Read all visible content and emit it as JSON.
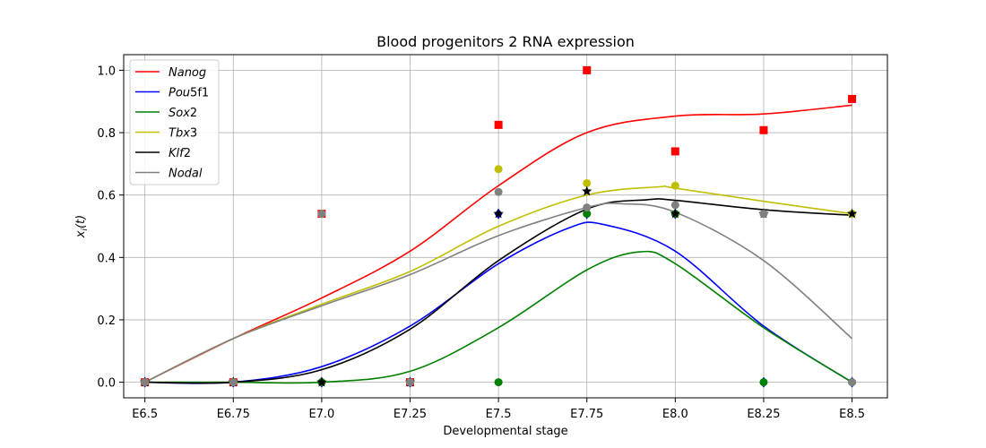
{
  "chart_data": {
    "type": "line",
    "title": "Blood progenitors 2 RNA expression",
    "xlabel": "Developmental stage",
    "ylabel": "x_i(t)",
    "categories": [
      "E6.5",
      "E6.75",
      "E7.0",
      "E7.25",
      "E7.5",
      "E7.75",
      "E8.0",
      "E8.25",
      "E8.5"
    ],
    "x": [
      6.5,
      6.75,
      7.0,
      7.25,
      7.5,
      7.75,
      8.0,
      8.25,
      8.5
    ],
    "xlim": [
      6.44,
      8.6
    ],
    "ylim": [
      -0.05,
      1.05
    ],
    "yticks": [
      "0.0",
      "0.2",
      "0.4",
      "0.6",
      "0.8",
      "1.0"
    ],
    "ytick_values": [
      0.0,
      0.2,
      0.4,
      0.6,
      0.8,
      1.0
    ],
    "grid": true,
    "legend_position": "top-left",
    "series": [
      {
        "name": "Nanog",
        "name_base": "Nanog",
        "name_sub": "",
        "color": "#ff0000",
        "marker": "square",
        "curve": [
          [
            6.5,
            0.0
          ],
          [
            6.75,
            0.14
          ],
          [
            7.0,
            0.27
          ],
          [
            7.25,
            0.42
          ],
          [
            7.5,
            0.63
          ],
          [
            7.75,
            0.8
          ],
          [
            8.0,
            0.853
          ],
          [
            8.25,
            0.86
          ],
          [
            8.5,
            0.888
          ]
        ],
        "points": [
          [
            6.5,
            0.0
          ],
          [
            6.75,
            0.0
          ],
          [
            7.0,
            0.54
          ],
          [
            7.25,
            0.0
          ],
          [
            7.5,
            0.825
          ],
          [
            7.75,
            1.0
          ],
          [
            8.0,
            0.74
          ],
          [
            8.25,
            0.808
          ],
          [
            8.5,
            0.908
          ]
        ]
      },
      {
        "name": "Pou5f1",
        "name_base": "Pou",
        "name_sub": "5f1",
        "color": "#0000ff",
        "marker": "diamond",
        "curve": [
          [
            6.5,
            0.0
          ],
          [
            6.75,
            0.0
          ],
          [
            7.0,
            0.05
          ],
          [
            7.25,
            0.18
          ],
          [
            7.5,
            0.38
          ],
          [
            7.7,
            0.495
          ],
          [
            7.8,
            0.505
          ],
          [
            8.0,
            0.42
          ],
          [
            8.25,
            0.18
          ],
          [
            8.5,
            0.0
          ]
        ],
        "points": [
          [
            6.5,
            0.0
          ],
          [
            6.75,
            0.0
          ],
          [
            7.0,
            0.0
          ],
          [
            7.25,
            0.0
          ],
          [
            7.5,
            0.54
          ],
          [
            7.75,
            0.54
          ],
          [
            8.0,
            0.54
          ],
          [
            8.25,
            0.0
          ],
          [
            8.5,
            0.0
          ]
        ]
      },
      {
        "name": "Sox2",
        "name_base": "Sox",
        "name_sub": "2",
        "color": "#008000",
        "marker": "circle",
        "curve": [
          [
            6.5,
            0.0
          ],
          [
            6.75,
            0.0
          ],
          [
            7.0,
            0.0
          ],
          [
            7.25,
            0.035
          ],
          [
            7.5,
            0.175
          ],
          [
            7.75,
            0.36
          ],
          [
            7.9,
            0.418
          ],
          [
            8.0,
            0.38
          ],
          [
            8.25,
            0.175
          ],
          [
            8.5,
            0.0
          ]
        ],
        "points": [
          [
            6.5,
            0.0
          ],
          [
            6.75,
            0.0
          ],
          [
            7.0,
            0.0
          ],
          [
            7.25,
            0.0
          ],
          [
            7.5,
            0.0
          ],
          [
            7.75,
            0.54
          ],
          [
            8.0,
            0.54
          ],
          [
            8.25,
            0.0
          ],
          [
            8.5,
            0.0
          ]
        ]
      },
      {
        "name": "Tbx3",
        "name_base": "Tbx",
        "name_sub": "3",
        "color": "#bfbf00",
        "marker": "circle",
        "curve": [
          [
            6.5,
            0.0
          ],
          [
            6.75,
            0.14
          ],
          [
            7.0,
            0.25
          ],
          [
            7.25,
            0.355
          ],
          [
            7.5,
            0.5
          ],
          [
            7.75,
            0.6
          ],
          [
            7.95,
            0.626
          ],
          [
            8.0,
            0.622
          ],
          [
            8.25,
            0.58
          ],
          [
            8.5,
            0.54
          ]
        ],
        "points": [
          [
            6.5,
            0.0
          ],
          [
            6.75,
            0.0
          ],
          [
            7.0,
            0.54
          ],
          [
            7.25,
            0.0
          ],
          [
            7.5,
            0.683
          ],
          [
            7.75,
            0.638
          ],
          [
            8.0,
            0.63
          ],
          [
            8.25,
            0.54
          ],
          [
            8.5,
            0.54
          ]
        ]
      },
      {
        "name": "Klf2",
        "name_base": "Klf",
        "name_sub": "2",
        "color": "#000000",
        "marker": "star",
        "curve": [
          [
            6.5,
            0.0
          ],
          [
            6.75,
            0.0
          ],
          [
            7.0,
            0.04
          ],
          [
            7.25,
            0.17
          ],
          [
            7.5,
            0.39
          ],
          [
            7.75,
            0.555
          ],
          [
            7.92,
            0.585
          ],
          [
            8.0,
            0.583
          ],
          [
            8.25,
            0.553
          ],
          [
            8.5,
            0.535
          ]
        ],
        "points": [
          [
            6.5,
            0.0
          ],
          [
            6.75,
            0.0
          ],
          [
            7.0,
            0.0
          ],
          [
            7.25,
            0.0
          ],
          [
            7.5,
            0.54
          ],
          [
            7.75,
            0.612
          ],
          [
            8.0,
            0.54
          ],
          [
            8.25,
            0.54
          ],
          [
            8.5,
            0.54
          ]
        ]
      },
      {
        "name": "Nodal",
        "name_base": "Nodal",
        "name_sub": "",
        "color": "#808080",
        "marker": "circle",
        "curve": [
          [
            6.5,
            0.0
          ],
          [
            6.75,
            0.14
          ],
          [
            7.0,
            0.245
          ],
          [
            7.25,
            0.345
          ],
          [
            7.5,
            0.47
          ],
          [
            7.75,
            0.56
          ],
          [
            7.85,
            0.572
          ],
          [
            8.0,
            0.545
          ],
          [
            8.25,
            0.39
          ],
          [
            8.5,
            0.14
          ]
        ],
        "points": [
          [
            6.5,
            0.0
          ],
          [
            6.75,
            0.0
          ],
          [
            7.0,
            0.54
          ],
          [
            7.25,
            0.0
          ],
          [
            7.5,
            0.61
          ],
          [
            7.75,
            0.56
          ],
          [
            8.0,
            0.568
          ],
          [
            8.25,
            0.54
          ],
          [
            8.5,
            0.0
          ]
        ]
      }
    ]
  }
}
